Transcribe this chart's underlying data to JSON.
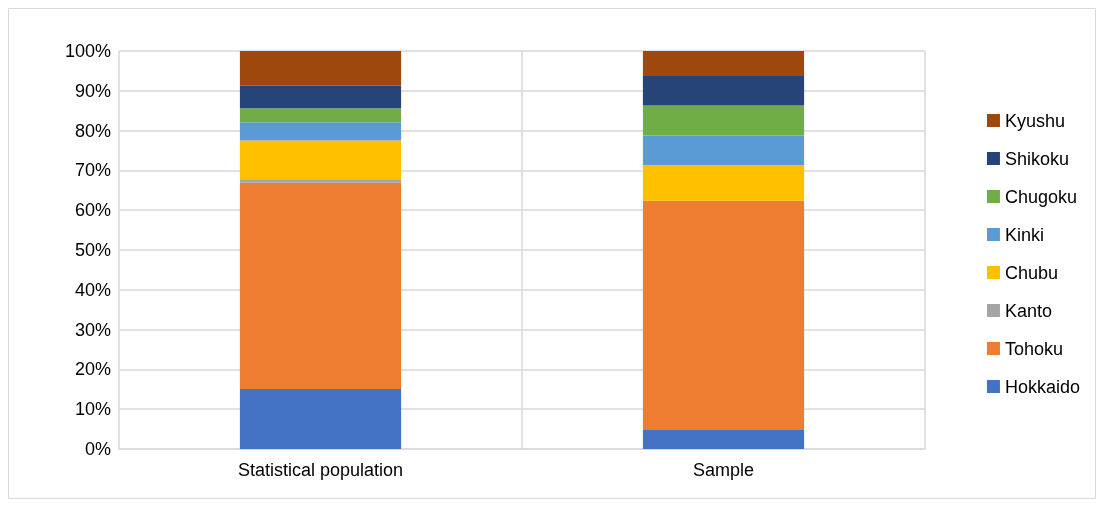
{
  "chart_data": {
    "type": "bar",
    "stacked": true,
    "categories": [
      "Statistical population",
      "Sample"
    ],
    "series": [
      {
        "name": "Hokkaido",
        "color": "#4472c4",
        "values": [
          15.1,
          4.8
        ]
      },
      {
        "name": "Tohoku",
        "color": "#ed7d31",
        "values": [
          51.8,
          57.6
        ]
      },
      {
        "name": "Kanto",
        "color": "#a5a5a5",
        "values": [
          0.7,
          0
        ]
      },
      {
        "name": "Chubu",
        "color": "#ffc000",
        "values": [
          9.9,
          8.9
        ]
      },
      {
        "name": "Kinki",
        "color": "#5b9bd5",
        "values": [
          4.6,
          7.5
        ]
      },
      {
        "name": "Chugoku",
        "color": "#70ad47",
        "values": [
          3.5,
          7.5
        ]
      },
      {
        "name": "Shikoku",
        "color": "#264478",
        "values": [
          5.7,
          7.4
        ]
      },
      {
        "name": "Kyushu",
        "color": "#9e480e",
        "values": [
          8.7,
          6.3
        ]
      }
    ],
    "ylim": [
      0,
      100
    ],
    "yticks": [
      {
        "value": 0,
        "label": "0%"
      },
      {
        "value": 10,
        "label": "10%"
      },
      {
        "value": 20,
        "label": "20%"
      },
      {
        "value": 30,
        "label": "30%"
      },
      {
        "value": 40,
        "label": "40%"
      },
      {
        "value": 50,
        "label": "50%"
      },
      {
        "value": 60,
        "label": "60%"
      },
      {
        "value": 70,
        "label": "70%"
      },
      {
        "value": 80,
        "label": "80%"
      },
      {
        "value": 90,
        "label": "90%"
      },
      {
        "value": 100,
        "label": "100%"
      }
    ],
    "grid": true,
    "legend": "right"
  }
}
